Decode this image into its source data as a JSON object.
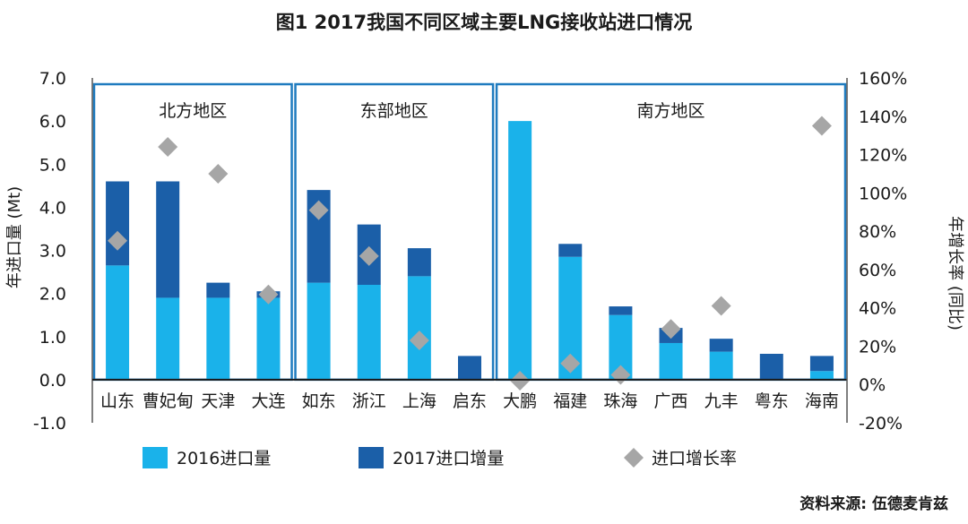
{
  "chart_data": {
    "type": "bar",
    "title": "图1  2017我国不同区域主要LNG接收站进口情况",
    "ylabel_left": "年进口量 (Mt)",
    "ylabel_right": "年增长率 (同比)",
    "ylim_left": [
      -1.0,
      7.0
    ],
    "ylim_right": [
      -0.2,
      1.6
    ],
    "left_ticks": [
      "7.0",
      "6.0",
      "5.0",
      "4.0",
      "3.0",
      "2.0",
      "1.0",
      "0.0",
      "-1.0"
    ],
    "right_ticks": [
      "160%",
      "140%",
      "120%",
      "100%",
      "80%",
      "60%",
      "40%",
      "20%",
      "0%",
      "-20%"
    ],
    "categories": [
      "山东",
      "曹妃甸",
      "天津",
      "大连",
      "如东",
      "浙江",
      "上海",
      "启东",
      "大鹏",
      "福建",
      "珠海",
      "广西",
      "九丰",
      "粤东",
      "海南"
    ],
    "regions": [
      {
        "name": "北方地区",
        "count": 4
      },
      {
        "name": "东部地区",
        "count": 4
      },
      {
        "name": "南方地区",
        "count": 7
      }
    ],
    "series": [
      {
        "name": "2016进口量",
        "kind": "bar-base",
        "color": "#1ab2ea",
        "values": [
          2.65,
          1.9,
          1.9,
          1.9,
          2.25,
          2.2,
          2.4,
          0.0,
          6.0,
          2.85,
          1.5,
          0.85,
          0.65,
          0.0,
          0.2
        ]
      },
      {
        "name": "2017进口增量",
        "kind": "bar-stack",
        "color": "#1b5fa8",
        "values": [
          1.95,
          2.7,
          0.35,
          0.15,
          2.15,
          1.4,
          0.65,
          0.55,
          0.0,
          0.3,
          0.2,
          0.35,
          0.3,
          0.6,
          0.35
        ]
      },
      {
        "name": "进口增长率",
        "kind": "marker",
        "color": "#a6a6a6",
        "values": [
          0.75,
          1.24,
          1.1,
          0.47,
          0.91,
          0.67,
          0.23,
          null,
          0.02,
          0.11,
          0.05,
          0.29,
          0.41,
          null,
          1.35
        ]
      }
    ],
    "legend_position": "bottom",
    "grid": false
  },
  "source_note": "资料来源: 伍德麦肯兹"
}
